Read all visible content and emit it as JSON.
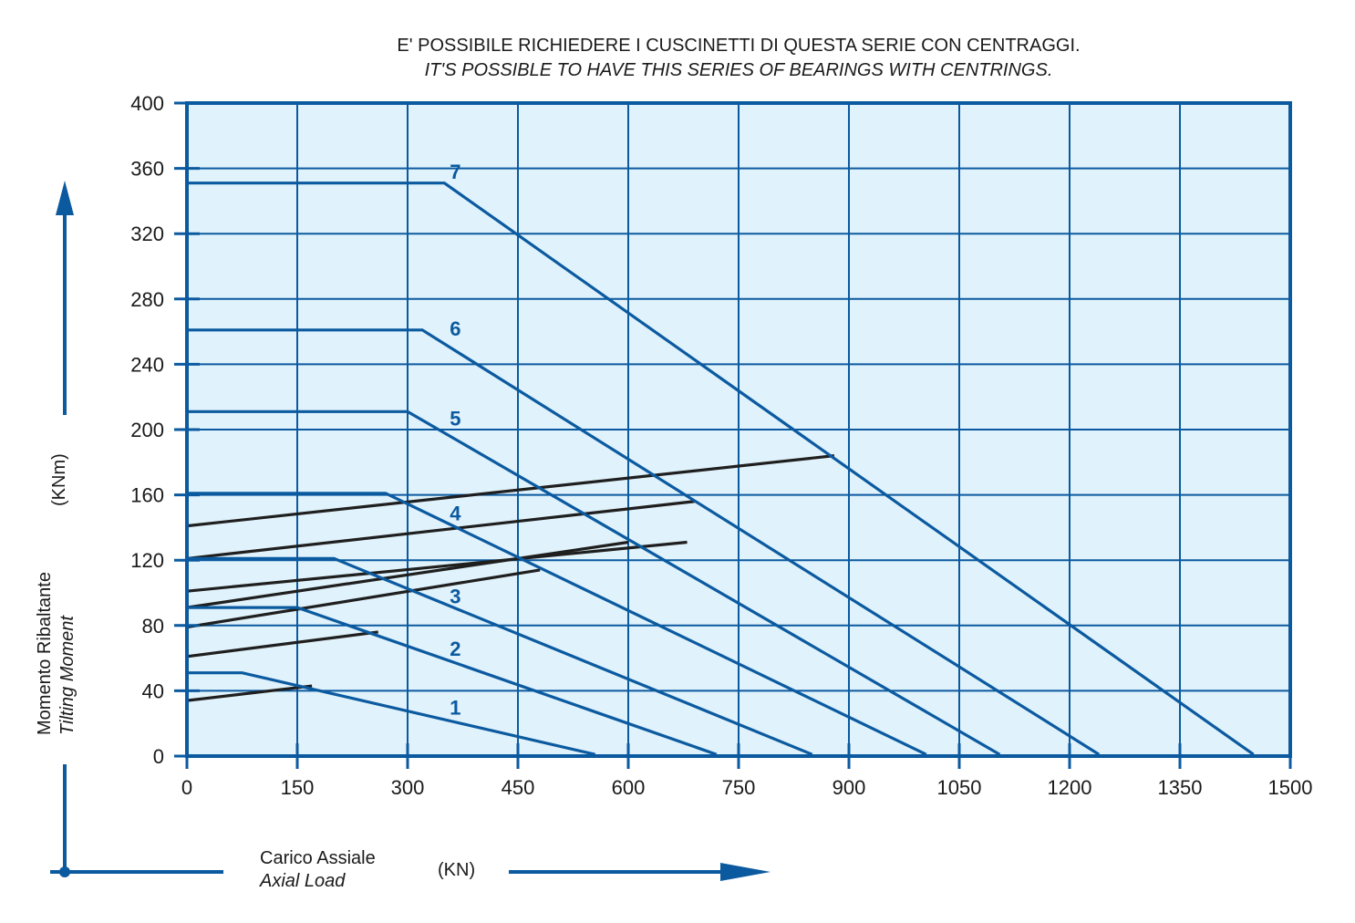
{
  "chart_data": {
    "type": "line",
    "notes": [
      "E' POSSIBILE RICHIEDERE I CUSCINETTI DI QUESTA SERIE CON CENTRAGGI.",
      "IT'S POSSIBLE TO HAVE THIS SERIES OF BEARINGS WITH CENTRINGS."
    ],
    "xlabel": {
      "it": "Carico Assiale",
      "en": "Axial Load",
      "unit": "(KN)"
    },
    "ylabel": {
      "it": "Momento Ribaltante",
      "en": "Tilting Moment",
      "unit": "(KNm)"
    },
    "xlim": [
      0,
      1500
    ],
    "ylim": [
      0,
      400
    ],
    "xticks": [
      0,
      150,
      300,
      450,
      600,
      750,
      900,
      1050,
      1200,
      1350,
      1500
    ],
    "yticks": [
      0,
      40,
      80,
      120,
      160,
      200,
      240,
      280,
      320,
      360,
      400
    ],
    "grid": true,
    "colors": {
      "curves": "#0b5aa0",
      "limits": "#1f1f1f",
      "plot_bg": "#e0f2fb",
      "frame": "#0b5aa0"
    },
    "series": [
      {
        "name": "1",
        "points": [
          [
            0,
            51
          ],
          [
            75,
            51
          ],
          [
            555,
            1
          ]
        ]
      },
      {
        "name": "2",
        "points": [
          [
            0,
            91
          ],
          [
            150,
            91
          ],
          [
            720,
            1
          ]
        ]
      },
      {
        "name": "3",
        "points": [
          [
            0,
            121
          ],
          [
            200,
            121
          ],
          [
            850,
            1
          ]
        ]
      },
      {
        "name": "4",
        "points": [
          [
            0,
            161
          ],
          [
            270,
            161
          ],
          [
            1005,
            1
          ]
        ]
      },
      {
        "name": "5",
        "points": [
          [
            0,
            211
          ],
          [
            300,
            211
          ],
          [
            1105,
            1
          ]
        ]
      },
      {
        "name": "6",
        "points": [
          [
            0,
            261
          ],
          [
            320,
            261
          ],
          [
            1240,
            1
          ]
        ]
      },
      {
        "name": "7",
        "points": [
          [
            0,
            351
          ],
          [
            350,
            351
          ],
          [
            1450,
            1
          ]
        ]
      }
    ],
    "limit_lines": [
      {
        "points": [
          [
            0,
            34
          ],
          [
            170,
            43
          ]
        ]
      },
      {
        "points": [
          [
            0,
            61
          ],
          [
            260,
            76
          ]
        ]
      },
      {
        "points": [
          [
            0,
            79
          ],
          [
            480,
            114
          ]
        ]
      },
      {
        "points": [
          [
            0,
            91
          ],
          [
            600,
            131
          ]
        ]
      },
      {
        "points": [
          [
            0,
            101
          ],
          [
            680,
            131
          ]
        ]
      },
      {
        "points": [
          [
            0,
            121
          ],
          [
            690,
            156
          ]
        ]
      },
      {
        "points": [
          [
            0,
            141
          ],
          [
            880,
            184
          ]
        ]
      }
    ],
    "series_label_positions": [
      [
        365,
        30
      ],
      [
        365,
        66
      ],
      [
        365,
        98
      ],
      [
        365,
        149
      ],
      [
        365,
        207
      ],
      [
        365,
        262
      ],
      [
        365,
        358
      ]
    ]
  }
}
